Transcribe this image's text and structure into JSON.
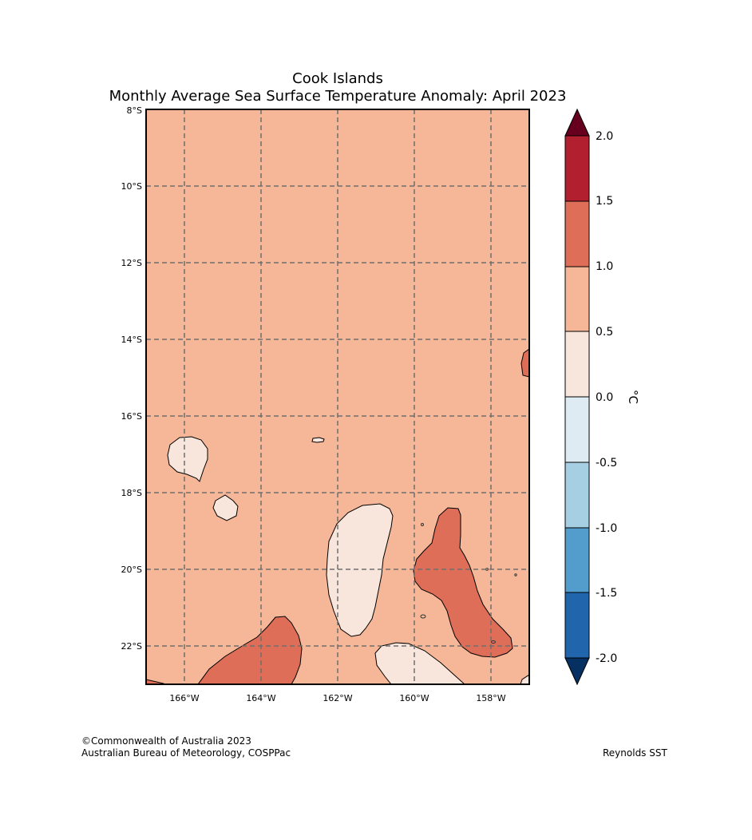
{
  "map": {
    "title_line1": "Cook Islands",
    "title_line2": "Monthly Average Sea Surface Temperature Anomaly: April 2023",
    "lat_labels": [
      "8°S",
      "10°S",
      "12°S",
      "14°S",
      "16°S",
      "18°S",
      "20°S",
      "22°S"
    ],
    "lon_labels": [
      "166°W",
      "164°W",
      "162°W",
      "160°W",
      "158°W"
    ],
    "background_fill": "#f5b797",
    "region_colors": {
      "warm_0_0.5": "#f8e5dc",
      "warm_1.0_1.5": "#de6e58"
    }
  },
  "colorbar": {
    "unit": "°C",
    "ticks": [
      "2.0",
      "1.5",
      "1.0",
      "0.5",
      "0.0",
      "-0.5",
      "-1.0",
      "-1.5",
      "-2.0"
    ],
    "bins": [
      {
        "range": ">2.0",
        "color": "#67001f"
      },
      {
        "range": "1.5 to 2.0",
        "color": "#b2202f"
      },
      {
        "range": "1.0 to 1.5",
        "color": "#de6e58"
      },
      {
        "range": "0.5 to 1.0",
        "color": "#f5b797"
      },
      {
        "range": "0.0 to 0.5",
        "color": "#f8e5dc"
      },
      {
        "range": "-0.5 to 0.0",
        "color": "#deebf2"
      },
      {
        "range": "-1.0 to -0.5",
        "color": "#a6cfe4"
      },
      {
        "range": "-1.5 to -1.0",
        "color": "#529dcb"
      },
      {
        "range": "-2.0 to -1.5",
        "color": "#2166ac"
      },
      {
        "range": "<-2.0",
        "color": "#053061"
      }
    ]
  },
  "footer": {
    "credit_line1": "©Commonwealth of Australia 2023",
    "credit_line2": "Australian Bureau of Meteorology, COSPPac",
    "source": "Reynolds SST"
  }
}
